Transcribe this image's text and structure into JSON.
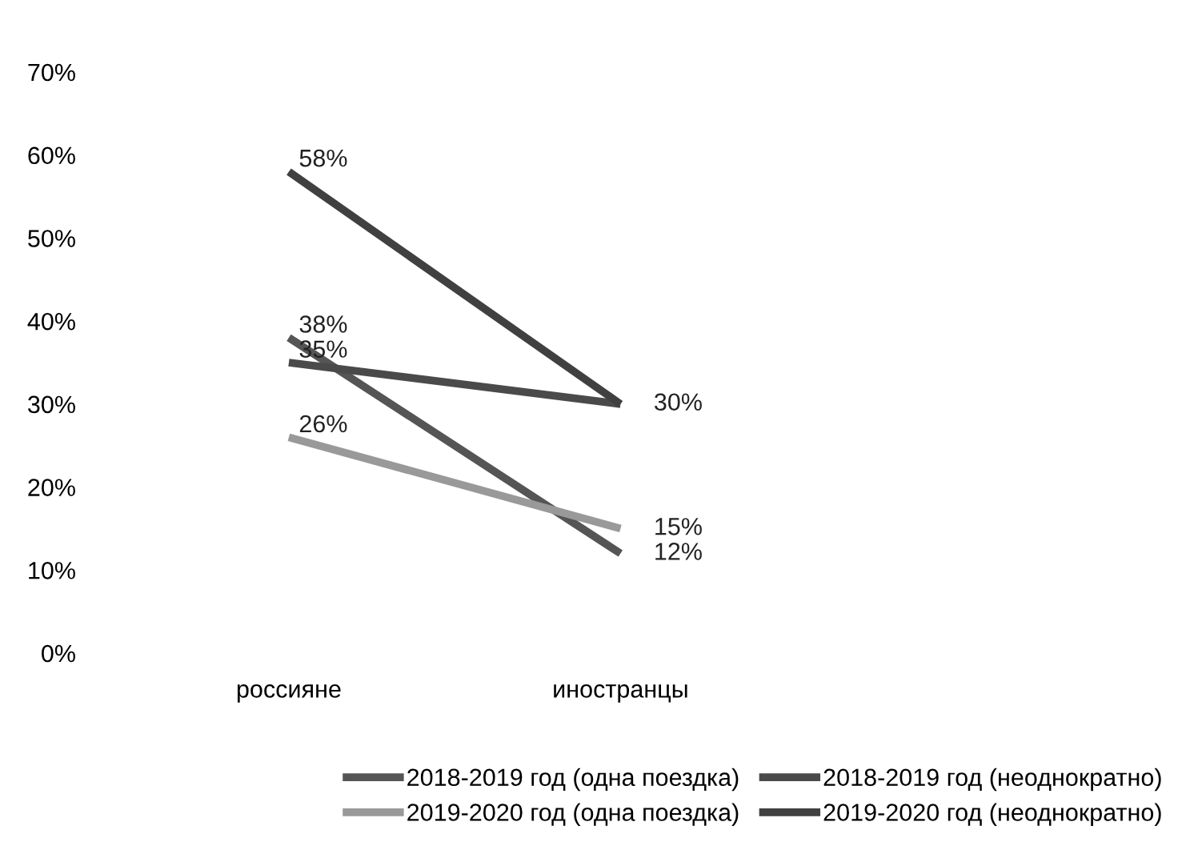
{
  "chart_data": {
    "type": "line",
    "categories": [
      "россияне",
      "иностранцы"
    ],
    "series": [
      {
        "name": "2018-2019 год (одна поездка)",
        "color": "#555555",
        "values": [
          38,
          12
        ],
        "value_labels": [
          "38%",
          "12%"
        ]
      },
      {
        "name": "2018-2019 год (неоднократно)",
        "color": "#4a4a4a",
        "values": [
          35,
          30
        ],
        "value_labels": [
          "35%",
          "30%"
        ]
      },
      {
        "name": "2019-2020 год (одна поездка)",
        "color": "#999999",
        "values": [
          26,
          15
        ],
        "value_labels": [
          "26%",
          "15%"
        ]
      },
      {
        "name": "2019-2020 год (неоднократно)",
        "color": "#404040",
        "values": [
          58,
          30
        ],
        "value_labels": [
          "58%",
          null
        ]
      }
    ],
    "ylim": [
      0,
      70
    ],
    "yticks": [
      {
        "value": 0,
        "label": "0%"
      },
      {
        "value": 10,
        "label": "10%"
      },
      {
        "value": 20,
        "label": "20%"
      },
      {
        "value": 30,
        "label": "30%"
      },
      {
        "value": 40,
        "label": "40%"
      },
      {
        "value": 50,
        "label": "50%"
      },
      {
        "value": 60,
        "label": "60%"
      },
      {
        "value": 70,
        "label": "70%"
      }
    ],
    "grid": false,
    "legend": "bottom",
    "marker": "none",
    "line_style": "solid"
  }
}
